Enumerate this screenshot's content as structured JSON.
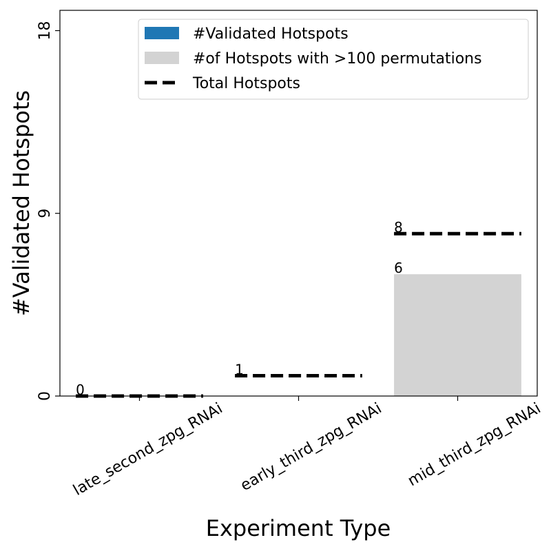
{
  "chart_data": {
    "type": "bar",
    "xlabel": "Experiment Type",
    "ylabel": "#Validated Hotspots",
    "ylim": [
      0,
      19
    ],
    "yticks": [
      0,
      9,
      18
    ],
    "categories": [
      "late_second_zpg_RNAi",
      "early_third_zpg_RNAi",
      "mid_third_zpg_RNAi"
    ],
    "series": [
      {
        "name": "#Validated Hotspots",
        "kind": "bar",
        "color": "#1f77b4",
        "values": [
          0,
          0,
          0
        ]
      },
      {
        "name": "#of Hotspots with >100 permutations",
        "kind": "bar",
        "color": "#d3d3d3",
        "values": [
          0,
          0,
          6
        ]
      },
      {
        "name": "Total Hotspots",
        "kind": "dashed-line",
        "color": "#000000",
        "values": [
          0,
          1,
          8
        ]
      }
    ],
    "data_labels": [
      "0",
      "1",
      "8",
      "6"
    ],
    "legend_position": "top-right",
    "grid": false
  }
}
